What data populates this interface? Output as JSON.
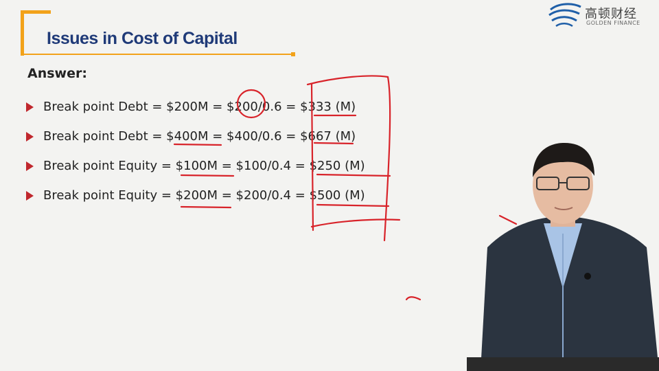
{
  "slide": {
    "title": "Issues in Cost of Capital",
    "answer_label": "Answer:",
    "bullets": [
      "Break point Debt = $200M = $200/0.6 = $333 (M)",
      "Break point Debt = $400M = $400/0.6 = $667 (M)",
      "Break point Equity = $100M = $100/0.4 = $250 (M)",
      "Break point Equity = $200M = $200/0.4 = $500 (M)"
    ]
  },
  "logo": {
    "chinese_name": "高顿财经",
    "english_name": "GOLDEN FINANCE"
  },
  "colors": {
    "title_blue": "#1f3a78",
    "accent_orange": "#f2a21a",
    "bullet_red": "#c0272d",
    "annotation_red": "#d8232a",
    "background": "#f3f3f1"
  },
  "icons": {
    "bullet": "arrow-bullet-icon",
    "logo": "golden-finance-logo-icon"
  }
}
